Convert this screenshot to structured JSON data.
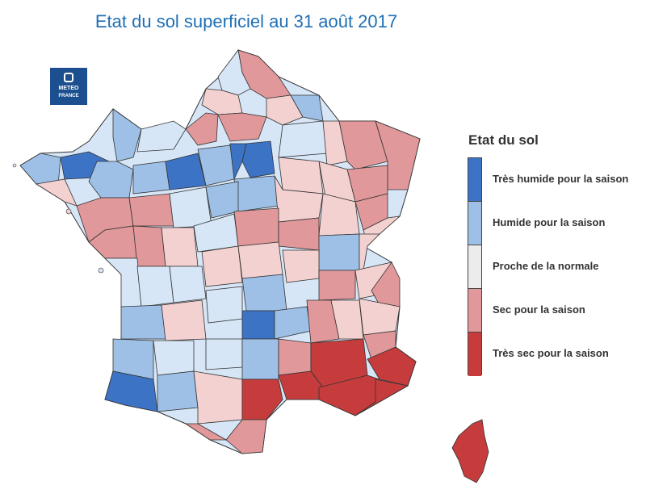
{
  "title": "Etat du sol superficiel au 31 août 2017",
  "logo": {
    "line1": "METEO",
    "line2": "FRANCE"
  },
  "legend": {
    "title": "Etat du sol",
    "items": [
      {
        "label": "Très humide pour la saison",
        "color": "#3d73c4"
      },
      {
        "label": "Humide pour la saison",
        "color": "#9ec0e6"
      },
      {
        "label": "Proche de la normale",
        "color": "#ececec"
      },
      {
        "label": "Sec pour la saison",
        "color": "#e0989a"
      },
      {
        "label": "Très sec pour la saison",
        "color": "#c63c3c"
      }
    ]
  },
  "colors": {
    "very_wet": "#3d73c4",
    "wet": "#9ec0e6",
    "light_wet": "#d7e6f6",
    "normal": "#ececec",
    "light_dry": "#f4d1d1",
    "dry": "#e0989a",
    "very_dry": "#c63c3c",
    "border": "#333333"
  }
}
